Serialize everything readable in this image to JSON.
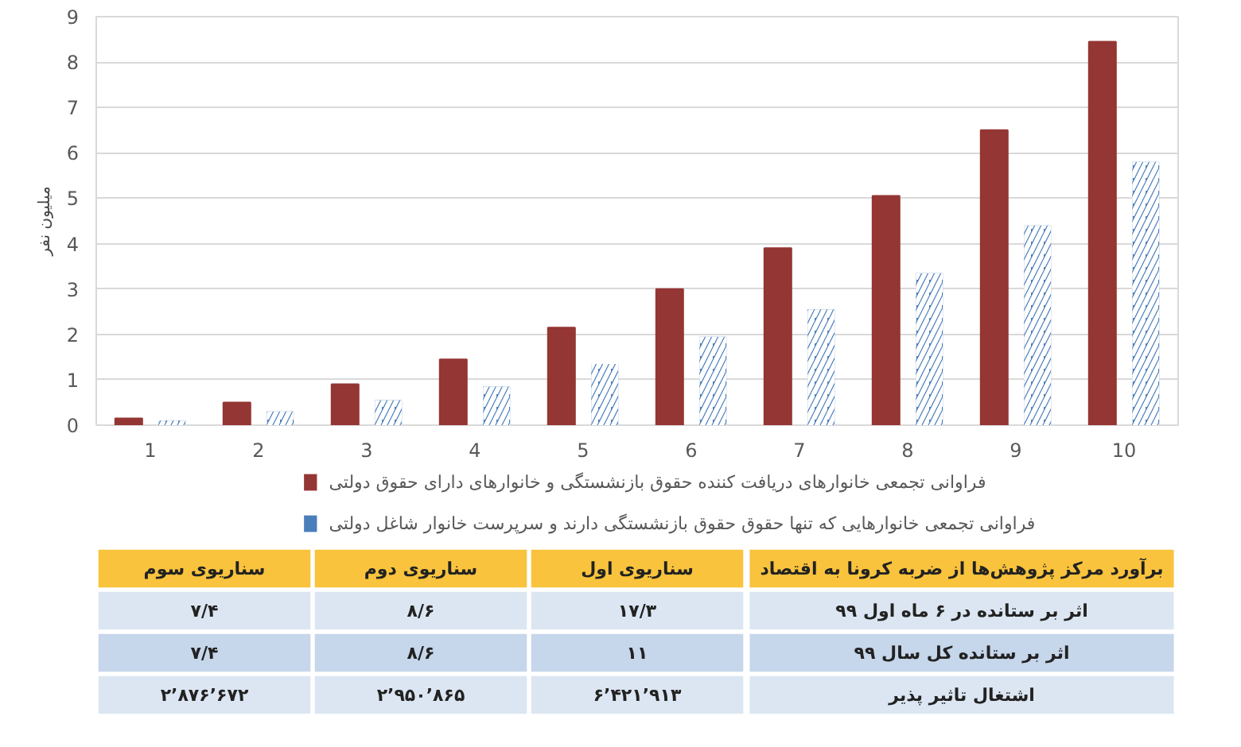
{
  "chart_data": [
    {
      "type": "bar",
      "ylabel": "میلیون نفر",
      "categories": [
        "1",
        "2",
        "3",
        "4",
        "5",
        "6",
        "7",
        "8",
        "9",
        "10"
      ],
      "series": [
        {
          "name": "فراوانی تجمعی خانوارهای دریافت کننده حقوق بازنشستگی و خانوارهای دارای حقوق دولتی",
          "color": "#943634",
          "values": [
            0.15,
            0.5,
            0.9,
            1.45,
            2.15,
            3.0,
            3.9,
            5.05,
            6.5,
            8.45
          ]
        },
        {
          "name": "فراوانی تجمعی خانوارهایی که تنها حقوق حقوق بازنشستگی دارند و سرپرست خانوار شاغل دولتی",
          "color": "#4a7ebb",
          "values": [
            0.1,
            0.3,
            0.55,
            0.85,
            1.35,
            1.95,
            2.55,
            3.35,
            4.4,
            5.8
          ]
        }
      ],
      "ylim": [
        0,
        9
      ],
      "yticks": [
        0,
        1,
        2,
        3,
        4,
        5,
        6,
        7,
        8,
        9
      ],
      "grid": "y",
      "legend": "bottom"
    },
    {
      "type": "other",
      "annotations": [
        "برآورد مرکز پژوهش‌ها از ضربه کرونا به اقتصاد",
        "سناریوی اول",
        "سناریوی دوم",
        "سناریوی سوم",
        "اثر بر ستانده در ۶ ماه اول ۹۹",
        "۱۷/۳",
        "۸/۶",
        "۷/۴",
        "اثر بر ستانده کل سال ۹۹",
        "۱۱",
        "۸/۶",
        "۷/۴",
        "اشتغال تاثیر پذیر",
        "۶٬۴۲۱٬۹۱۳",
        "۲٬۹۵۰٬۸۶۵",
        "۲٬۸۷۶٬۶۷۲"
      ]
    }
  ]
}
